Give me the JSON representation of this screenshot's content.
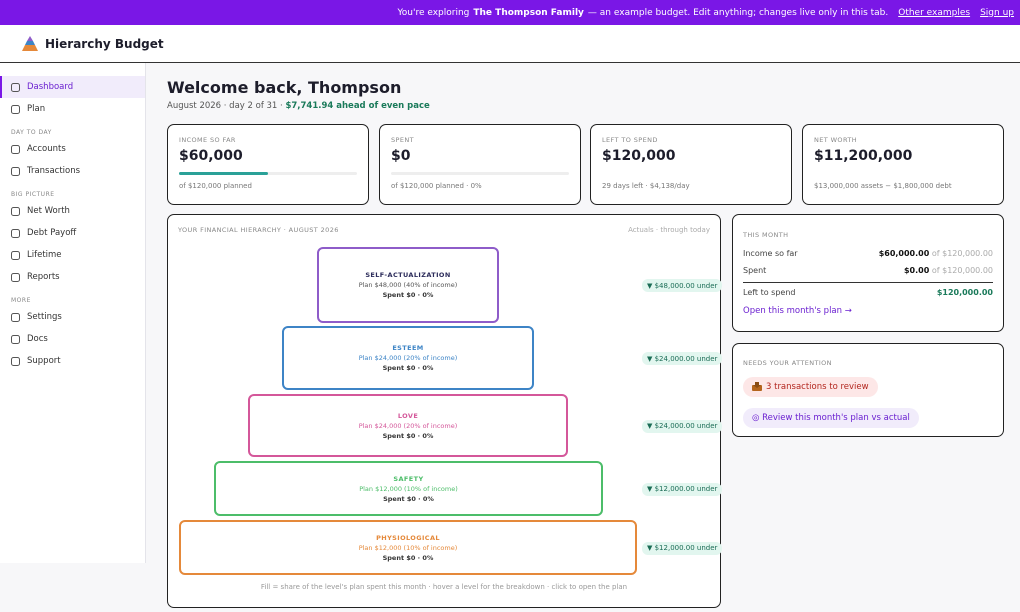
{
  "banner": {
    "prefix": "You're exploring",
    "family": "The Thompson Family",
    "suffix": "— an example budget. Edit anything; changes live only in this tab.",
    "links": [
      "Other examples",
      "Sign up"
    ]
  },
  "app": {
    "name": "Hierarchy Budget"
  },
  "sidebar": {
    "top": [
      "Dashboard",
      "Plan"
    ],
    "sections": [
      {
        "heading": "DAY TO DAY",
        "items": [
          "Accounts",
          "Transactions"
        ]
      },
      {
        "heading": "BIG PICTURE",
        "items": [
          "Net Worth",
          "Debt Payoff",
          "Lifetime",
          "Reports"
        ]
      },
      {
        "heading": "MORE",
        "items": [
          "Settings",
          "Docs",
          "Support"
        ]
      }
    ]
  },
  "main": {
    "title": "Welcome back, Thompson",
    "subtitle": "August 2026 · day 2 of 31 ·",
    "pace": "$7,741.94 ahead of even pace"
  },
  "cards": [
    {
      "label": "INCOME SO FAR",
      "value": "$60,000",
      "note": "of $120,000 planned",
      "progress": 50
    },
    {
      "label": "SPENT",
      "value": "$0",
      "note": "of $120,000 planned · 0%",
      "progress": 0
    },
    {
      "label": "LEFT TO SPEND",
      "value": "$120,000",
      "note": "29 days left · $4,138/day"
    },
    {
      "label": "NET WORTH",
      "value": "$11,200,000",
      "note": "$13,000,000 assets − $1,800,000 debt"
    }
  ],
  "hierarchy": {
    "title": "YOUR FINANCIAL HIERARCHY · AUGUST 2026",
    "caption": "Actuals · through today",
    "levels": [
      {
        "name": "SELF-ACTUALIZATION",
        "plan": "Plan $48,000 (40% of income)",
        "spent": "Spent $0 · 0%",
        "status": "▼ $48,000.00 under",
        "color": "#8e5cc9"
      },
      {
        "name": "ESTEEM",
        "plan": "Plan $24,000 (20% of income)",
        "spent": "Spent $0 · 0%",
        "status": "▼ $24,000.00 under",
        "color": "#3d84c6"
      },
      {
        "name": "LOVE",
        "plan": "Plan $24,000 (20% of income)",
        "spent": "Spent $0 · 0%",
        "status": "▼ $24,000.00 under",
        "color": "#d4579a"
      },
      {
        "name": "SAFETY",
        "plan": "Plan $12,000 (10% of income)",
        "spent": "Spent $0 · 0%",
        "status": "▼ $12,000.00 under",
        "color": "#4cbd69"
      },
      {
        "name": "PHYSIOLOGICAL",
        "plan": "Plan $12,000 (10% of income)",
        "spent": "Spent $0 · 0%",
        "status": "▼ $12,000.00 under",
        "color": "#e5893a"
      }
    ],
    "footnote": "Fill = share of the level's plan spent this month · hover a level for the breakdown · click to open the plan"
  },
  "this_month": {
    "heading": "THIS MONTH",
    "rows": [
      {
        "label": "Income so far",
        "value": "$60,000.00",
        "of": "of $120,000.00"
      },
      {
        "label": "Spent",
        "value": "$0.00",
        "of": "of $120,000.00"
      },
      {
        "label": "Left to spend",
        "value": "$120,000.00"
      }
    ],
    "link": "Open this month's plan →"
  },
  "attention": {
    "heading": "NEEDS YOUR ATTENTION",
    "items": [
      "3 transactions to review",
      "◎ Review this month's plan vs actual"
    ]
  }
}
